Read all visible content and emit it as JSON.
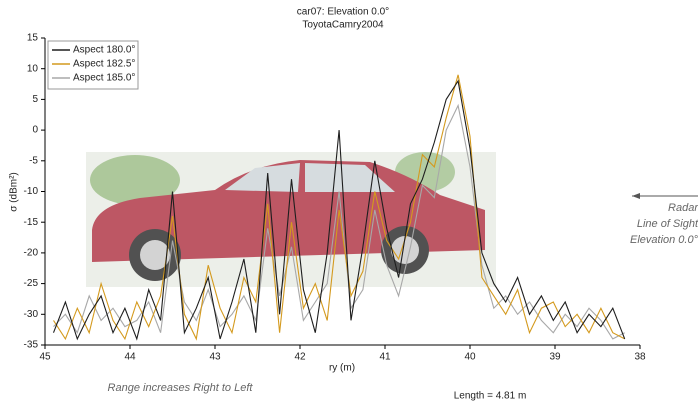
{
  "chart_data": {
    "type": "line",
    "title": "car07:  Elevation 0.0°",
    "subtitle": "ToyotaCamry2004",
    "ylabel": "σ (dBm²)",
    "xlabel": "ry (m)",
    "annotations": [
      "Range increases Right to Left",
      "Length = 4.81 m",
      "Radar",
      "Line of Sight",
      "Elevation 0.0°"
    ],
    "xlim": [
      45,
      38
    ],
    "xticks": [
      45,
      44,
      43,
      42,
      41,
      40,
      39,
      38
    ],
    "ylim": [
      -35,
      15
    ],
    "yticks": [
      -35,
      -30,
      -25,
      -20,
      -15,
      -10,
      -5,
      0,
      5,
      10,
      15
    ],
    "legend": "upper left",
    "x": [
      44.9,
      44.76,
      44.62,
      44.48,
      44.34,
      44.2,
      44.06,
      43.92,
      43.78,
      43.64,
      43.5,
      43.36,
      43.22,
      43.08,
      42.94,
      42.8,
      42.66,
      42.52,
      42.38,
      42.24,
      42.1,
      41.96,
      41.82,
      41.68,
      41.54,
      41.4,
      41.26,
      41.12,
      40.98,
      40.84,
      40.7,
      40.56,
      40.42,
      40.28,
      40.14,
      40.0,
      39.86,
      39.72,
      39.58,
      39.44,
      39.3,
      39.16,
      39.02,
      38.88,
      38.74,
      38.6,
      38.46,
      38.32,
      38.18
    ],
    "series": [
      {
        "name": "Aspect 180.0°",
        "color": "#1e1e1e",
        "values": [
          -33,
          -28,
          -34,
          -30,
          -27,
          -33,
          -29,
          -34,
          -26,
          -31,
          -10,
          -33,
          -29,
          -24,
          -34,
          -28,
          -21,
          -33,
          -7,
          -30,
          -8,
          -26,
          -33,
          -20,
          0,
          -31,
          -19,
          -5,
          -16,
          -24,
          -12,
          -8,
          -2,
          5,
          8,
          -3,
          -20,
          -25,
          -28,
          -24,
          -30,
          -27,
          -31,
          -28,
          -33,
          -30,
          -32,
          -29,
          -34
        ]
      },
      {
        "name": "Aspect 182.5°",
        "color": "#d49a1e",
        "values": [
          -31,
          -34,
          -29,
          -33,
          -25,
          -31,
          -34,
          -28,
          -32,
          -27,
          -14,
          -30,
          -34,
          -22,
          -29,
          -33,
          -24,
          -28,
          -12,
          -33,
          -15,
          -29,
          -25,
          -31,
          -13,
          -27,
          -23,
          -10,
          -18,
          -21,
          -15,
          -4,
          -6,
          2,
          9,
          -1,
          -24,
          -27,
          -30,
          -26,
          -33,
          -29,
          -28,
          -32,
          -30,
          -33,
          -29,
          -33,
          -34
        ]
      },
      {
        "name": "Aspect 185.0°",
        "color": "#a8a8a8",
        "values": [
          -32,
          -30,
          -33,
          -27,
          -31,
          -29,
          -32,
          -31,
          -28,
          -33,
          -18,
          -28,
          -31,
          -26,
          -32,
          -30,
          -27,
          -31,
          -16,
          -27,
          -19,
          -31,
          -28,
          -25,
          -10,
          -29,
          -26,
          -13,
          -22,
          -27,
          -19,
          -9,
          -11,
          0,
          4,
          -6,
          -22,
          -29,
          -27,
          -30,
          -28,
          -31,
          -33,
          -30,
          -32,
          -29,
          -31,
          -34,
          -33
        ]
      }
    ]
  }
}
